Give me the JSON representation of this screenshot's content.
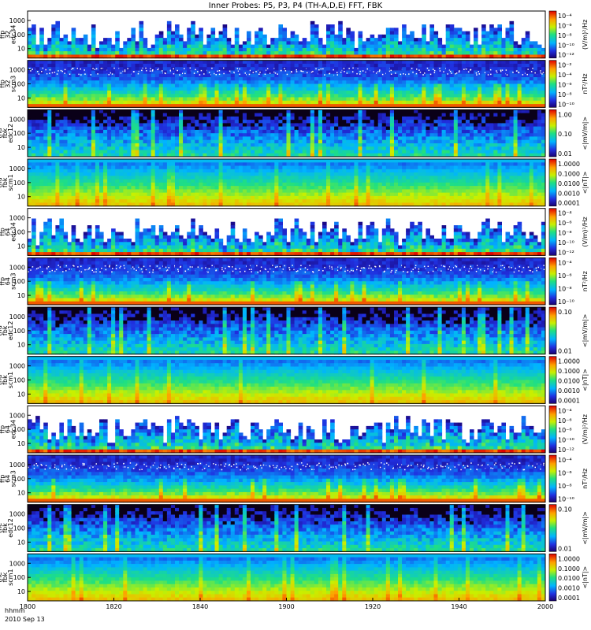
{
  "chart_data": {
    "type": "heatmap",
    "title": "Inner Probes: P5, P3, P4 (TH-A,D,E) FFT, FBK",
    "x_label_line1": "hhmm",
    "x_label_line2": "2010 Sep 13",
    "x_ticks": [
      "1800",
      "1820",
      "1840",
      "1900",
      "1920",
      "1940",
      "2000"
    ],
    "xlim": [
      "18:00",
      "20:00"
    ],
    "colormap": "rainbow",
    "panels": [
      {
        "ylabel": [
          "tha",
          "ffp",
          "32",
          "edc34"
        ],
        "yticks": [
          "1000",
          "100",
          "10"
        ],
        "cbar_ticks": [
          "10⁻⁴",
          "10⁻⁶",
          "10⁻⁸",
          "10⁻¹⁰",
          "10⁻¹²"
        ],
        "cbar_label": "(V/m)²/Hz",
        "style": "sparse"
      },
      {
        "ylabel": [
          "tha",
          "ffp",
          "32",
          "scm3"
        ],
        "yticks": [
          "1000",
          "100",
          "10"
        ],
        "cbar_ticks": [
          "10⁻²",
          "10⁻⁴",
          "10⁻⁶",
          "10⁻⁸",
          "10⁻¹⁰"
        ],
        "cbar_label": "nT²/Hz",
        "style": "dotted"
      },
      {
        "ylabel": [
          "tha",
          "fbk",
          "edc12"
        ],
        "yticks": [
          "1000",
          "100",
          "10"
        ],
        "cbar_ticks": [
          "1.00",
          "0.10",
          "0.01"
        ],
        "cbar_label": "<|mV/m|>",
        "style": "dark"
      },
      {
        "ylabel": [
          "tha",
          "fbk",
          "scm1"
        ],
        "yticks": [
          "1000",
          "100",
          "10"
        ],
        "cbar_ticks": [
          "1.0000",
          "0.1000",
          "0.0100",
          "0.0010",
          "0.0001"
        ],
        "cbar_label": "<|nT|>",
        "style": "smooth"
      },
      {
        "ylabel": [
          "thd",
          "ffp",
          "64",
          "edc34"
        ],
        "yticks": [
          "1000",
          "100",
          "10"
        ],
        "cbar_ticks": [
          "10⁻⁴",
          "10⁻⁶",
          "10⁻⁸",
          "10⁻¹⁰",
          "10⁻¹²"
        ],
        "cbar_label": "(V/m)²/Hz",
        "style": "sparse"
      },
      {
        "ylabel": [
          "thd",
          "ffp",
          "64",
          "scm3"
        ],
        "yticks": [
          "1000",
          "100",
          "10"
        ],
        "cbar_ticks": [
          "10⁻⁴",
          "10⁻⁶",
          "10⁻⁸",
          "10⁻¹⁰"
        ],
        "cbar_label": "nT²/Hz",
        "style": "dotted"
      },
      {
        "ylabel": [
          "thd",
          "fbk",
          "edc12"
        ],
        "yticks": [
          "1000",
          "100",
          "10"
        ],
        "cbar_ticks": [
          "0.10",
          "0.01"
        ],
        "cbar_label": "<|mV/m|>",
        "style": "dark"
      },
      {
        "ylabel": [
          "thd",
          "fbk",
          "scm1"
        ],
        "yticks": [
          "1000",
          "100",
          "10"
        ],
        "cbar_ticks": [
          "1.0000",
          "0.1000",
          "0.0100",
          "0.0010",
          "0.0001"
        ],
        "cbar_label": "<|nT|>",
        "style": "smooth"
      },
      {
        "ylabel": [
          "the",
          "ffp",
          "64",
          "edc34"
        ],
        "yticks": [
          "1000",
          "100",
          "10"
        ],
        "cbar_ticks": [
          "10⁻⁴",
          "10⁻⁶",
          "10⁻⁸",
          "10⁻¹⁰",
          "10⁻¹²"
        ],
        "cbar_label": "(V/m)²/Hz",
        "style": "sparse"
      },
      {
        "ylabel": [
          "the",
          "ffp",
          "64",
          "scm3"
        ],
        "yticks": [
          "1000",
          "100",
          "10"
        ],
        "cbar_ticks": [
          "10⁻⁴",
          "10⁻⁶",
          "10⁻⁸",
          "10⁻¹⁰"
        ],
        "cbar_label": "nT²/Hz",
        "style": "dotted"
      },
      {
        "ylabel": [
          "the",
          "fbk",
          "edc12"
        ],
        "yticks": [
          "1000",
          "100",
          "10"
        ],
        "cbar_ticks": [
          "0.10",
          "0.01"
        ],
        "cbar_label": "<|mV/m|>",
        "style": "dark"
      },
      {
        "ylabel": [
          "the",
          "fbk",
          "scm1"
        ],
        "yticks": [
          "1000",
          "100",
          "10"
        ],
        "cbar_ticks": [
          "1.0000",
          "0.1000",
          "0.0100",
          "0.0010",
          "0.0001"
        ],
        "cbar_label": "<|nT|>",
        "style": "smooth"
      }
    ]
  }
}
